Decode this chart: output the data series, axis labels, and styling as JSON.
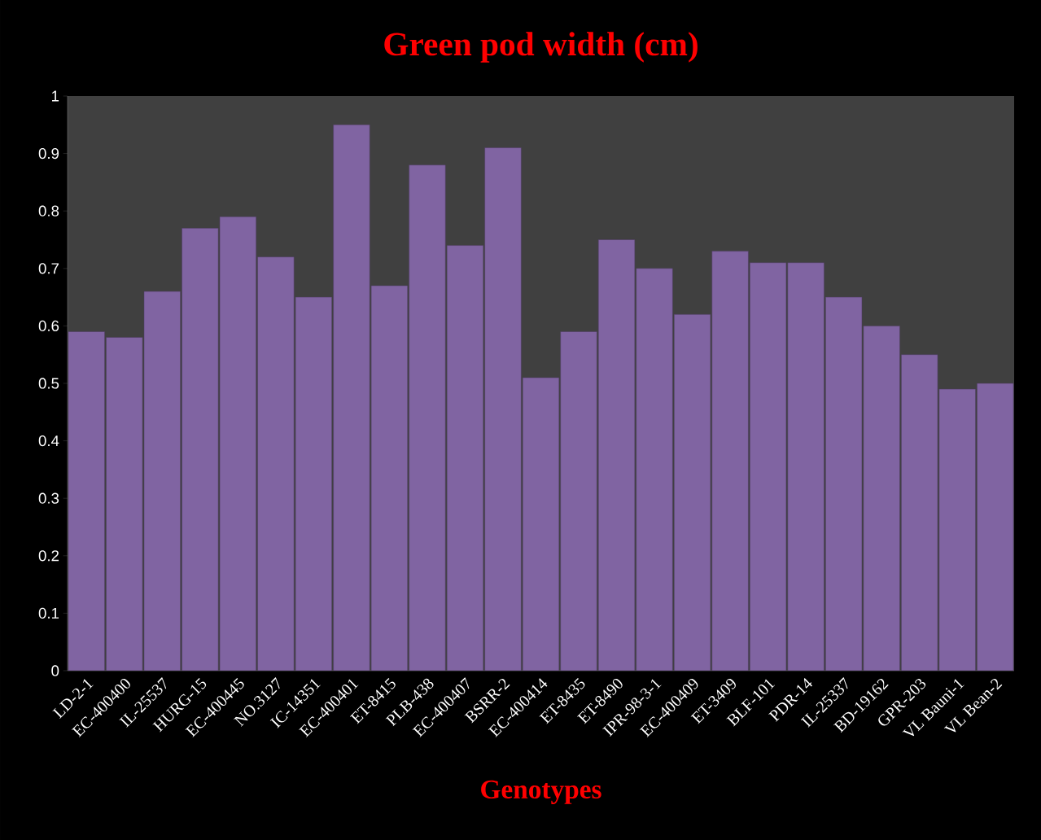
{
  "chart_data": {
    "type": "bar",
    "title": "Green pod width (cm)",
    "xlabel": "Genotypes",
    "categories": [
      "LD-2-1",
      "EC-400400",
      "IL-25537",
      "HURG-15",
      "EC-400445",
      "NO.3127",
      "IC-14351",
      "EC-400401",
      "ET-8415",
      "PLB-438",
      "EC-400407",
      "BSRR-2",
      "EC-400414",
      "ET-8435",
      "ET-8490",
      "IPR-98-3-1",
      "EC-400409",
      "ET-3409",
      "BLF-101",
      "PDR-14",
      "IL-25337",
      "BD-19162",
      "GPR-203",
      "VL Bauni-1",
      "VL Bean-2"
    ],
    "values": [
      0.59,
      0.58,
      0.66,
      0.77,
      0.79,
      0.72,
      0.65,
      0.95,
      0.67,
      0.88,
      0.74,
      0.91,
      0.51,
      0.59,
      0.75,
      0.7,
      0.62,
      0.73,
      0.71,
      0.71,
      0.65,
      0.6,
      0.55,
      0.49,
      0.5
    ],
    "color": "#8064a2",
    "ylim": [
      0,
      1
    ],
    "yticks": [
      0,
      0.1,
      0.2,
      0.3,
      0.4,
      0.5,
      0.6,
      0.7,
      0.8,
      0.9,
      1
    ]
  }
}
